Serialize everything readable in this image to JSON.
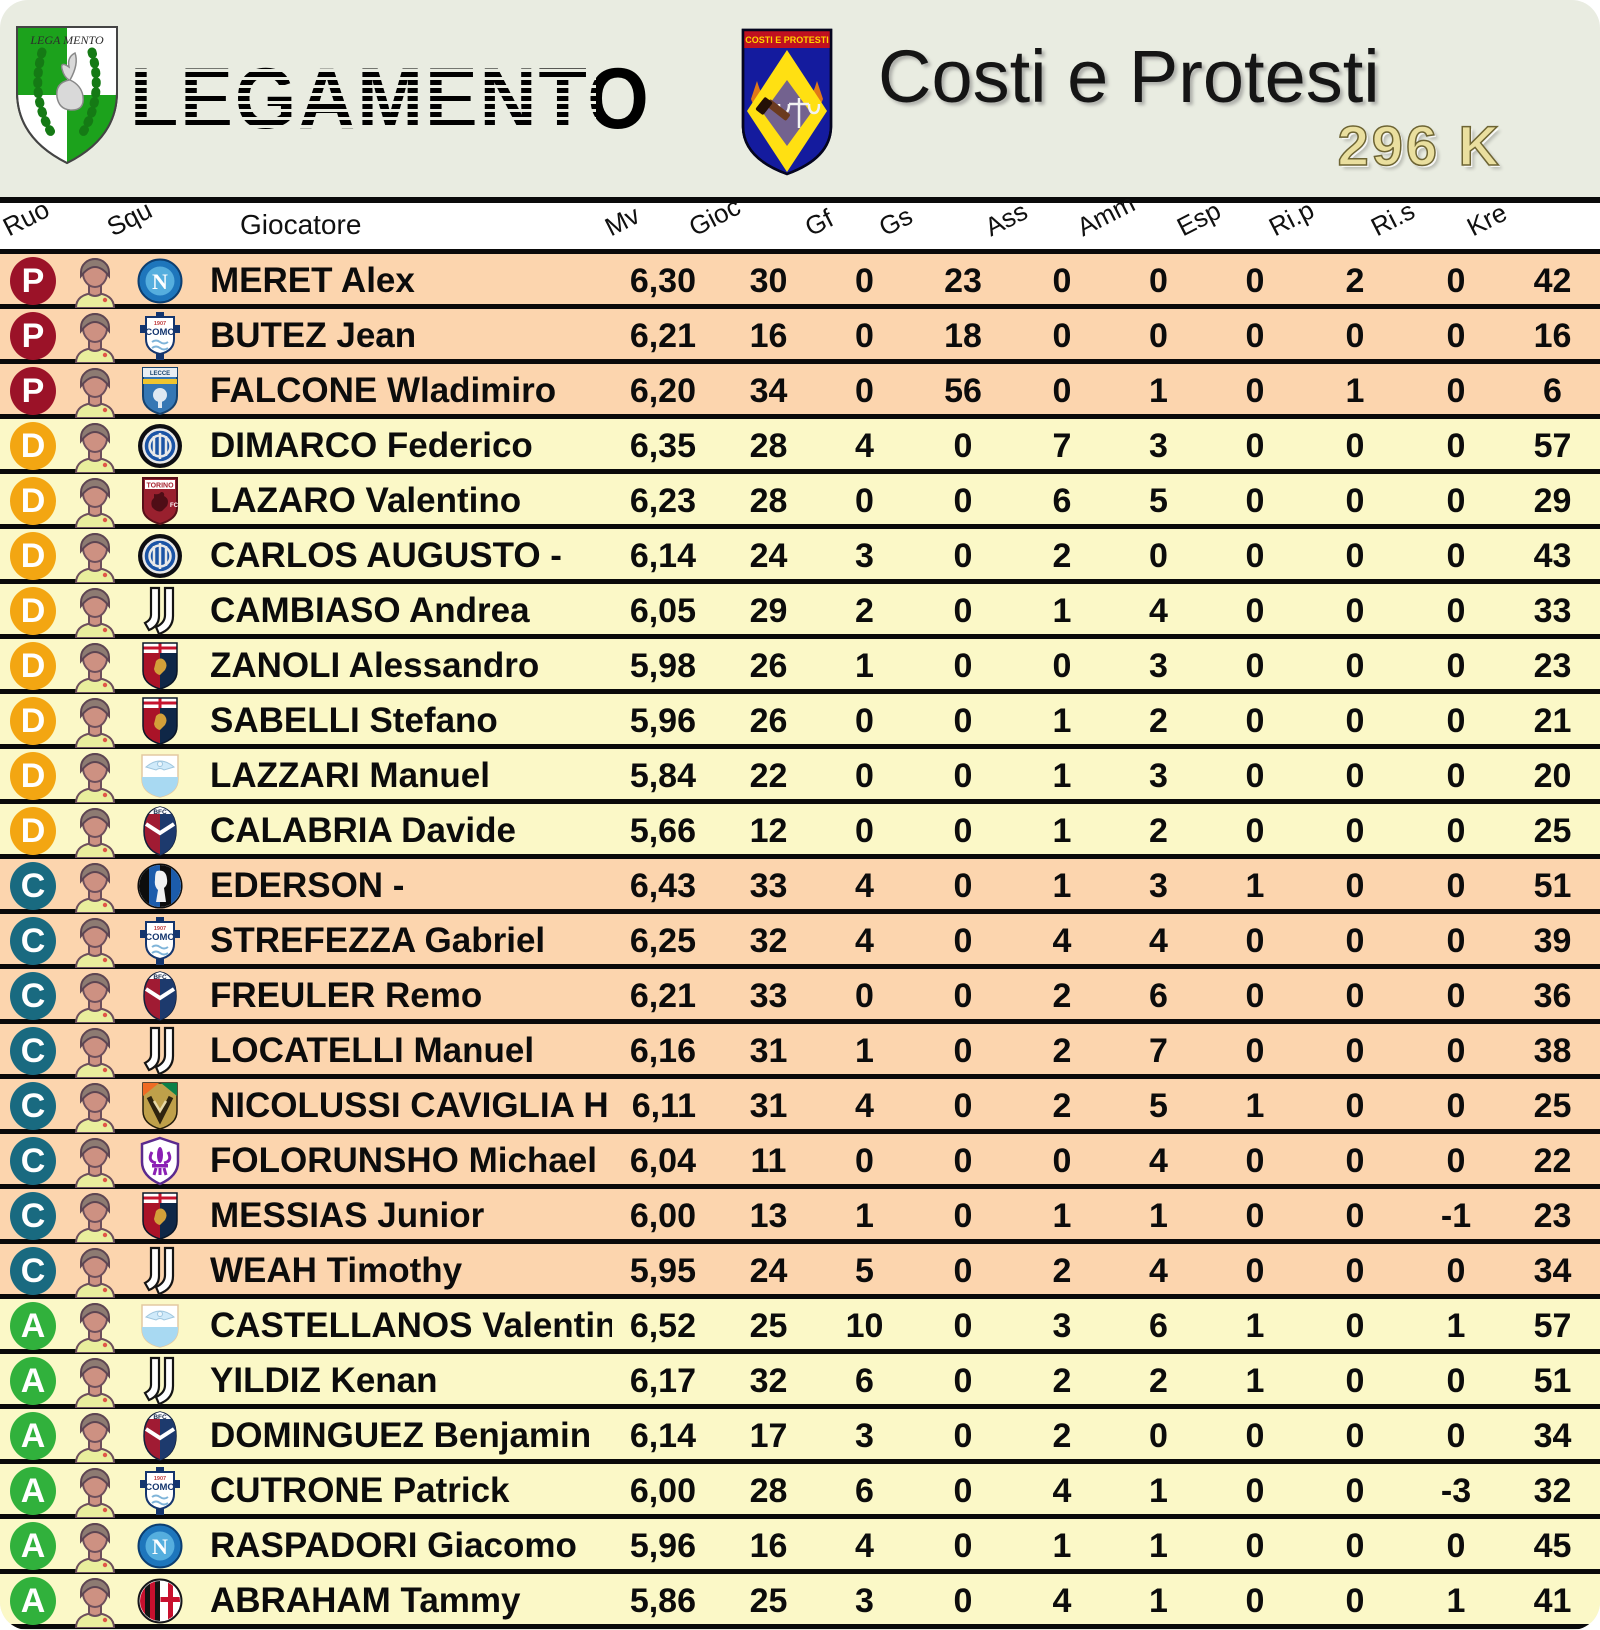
{
  "header": {
    "league_name": "LEGAMENTO",
    "league_logo_text": "LEGA MENTO",
    "team_name": "Costi e Protesti",
    "team_crest_text": "COSTI E PROTESTI",
    "credits": "296 K"
  },
  "role_colors": {
    "P": "#9b1228",
    "D": "#f3a612",
    "C": "#196a80",
    "A": "#31b13c"
  },
  "row_colors": {
    "P": "#fcd5ae",
    "D": "#fbf8c7",
    "C": "#fcd5ae",
    "A": "#fbf8c7"
  },
  "table": {
    "columns": [
      {
        "key": "ruo",
        "label": "Ruo"
      },
      {
        "key": "squ",
        "label": "Squ"
      },
      {
        "key": "giocatore",
        "label": "Giocatore"
      },
      {
        "key": "mv",
        "label": "Mv"
      },
      {
        "key": "gioc",
        "label": "Gioc"
      },
      {
        "key": "gf",
        "label": "Gf"
      },
      {
        "key": "gs",
        "label": "Gs"
      },
      {
        "key": "ass",
        "label": "Ass"
      },
      {
        "key": "amm",
        "label": "Amm"
      },
      {
        "key": "esp",
        "label": "Esp"
      },
      {
        "key": "rip",
        "label": "Ri.p"
      },
      {
        "key": "ris",
        "label": "Ri.s"
      },
      {
        "key": "kre",
        "label": "Kre"
      }
    ],
    "rows": [
      {
        "role": "P",
        "club": "napoli",
        "name": "MERET Alex",
        "mv": "6,30",
        "gioc": 30,
        "gf": 0,
        "gs": 23,
        "ass": 0,
        "amm": 0,
        "esp": 0,
        "rip": 2,
        "ris": 0,
        "kre": 42
      },
      {
        "role": "P",
        "club": "como",
        "name": "BUTEZ Jean",
        "mv": "6,21",
        "gioc": 16,
        "gf": 0,
        "gs": 18,
        "ass": 0,
        "amm": 0,
        "esp": 0,
        "rip": 0,
        "ris": 0,
        "kre": 16
      },
      {
        "role": "P",
        "club": "lecce",
        "name": "FALCONE Wladimiro",
        "mv": "6,20",
        "gioc": 34,
        "gf": 0,
        "gs": 56,
        "ass": 0,
        "amm": 1,
        "esp": 0,
        "rip": 1,
        "ris": 0,
        "kre": 6
      },
      {
        "role": "D",
        "club": "inter",
        "name": "DIMARCO Federico",
        "mv": "6,35",
        "gioc": 28,
        "gf": 4,
        "gs": 0,
        "ass": 7,
        "amm": 3,
        "esp": 0,
        "rip": 0,
        "ris": 0,
        "kre": 57
      },
      {
        "role": "D",
        "club": "torino",
        "name": "LAZARO Valentino",
        "mv": "6,23",
        "gioc": 28,
        "gf": 0,
        "gs": 0,
        "ass": 6,
        "amm": 5,
        "esp": 0,
        "rip": 0,
        "ris": 0,
        "kre": 29
      },
      {
        "role": "D",
        "club": "inter",
        "name": "CARLOS AUGUSTO -",
        "mv": "6,14",
        "gioc": 24,
        "gf": 3,
        "gs": 0,
        "ass": 2,
        "amm": 0,
        "esp": 0,
        "rip": 0,
        "ris": 0,
        "kre": 43
      },
      {
        "role": "D",
        "club": "juventus",
        "name": "CAMBIASO Andrea",
        "mv": "6,05",
        "gioc": 29,
        "gf": 2,
        "gs": 0,
        "ass": 1,
        "amm": 4,
        "esp": 0,
        "rip": 0,
        "ris": 0,
        "kre": 33
      },
      {
        "role": "D",
        "club": "genoa",
        "name": "ZANOLI Alessandro",
        "mv": "5,98",
        "gioc": 26,
        "gf": 1,
        "gs": 0,
        "ass": 0,
        "amm": 3,
        "esp": 0,
        "rip": 0,
        "ris": 0,
        "kre": 23
      },
      {
        "role": "D",
        "club": "genoa",
        "name": "SABELLI Stefano",
        "mv": "5,96",
        "gioc": 26,
        "gf": 0,
        "gs": 0,
        "ass": 1,
        "amm": 2,
        "esp": 0,
        "rip": 0,
        "ris": 0,
        "kre": 21
      },
      {
        "role": "D",
        "club": "lazio",
        "name": "LAZZARI Manuel",
        "mv": "5,84",
        "gioc": 22,
        "gf": 0,
        "gs": 0,
        "ass": 1,
        "amm": 3,
        "esp": 0,
        "rip": 0,
        "ris": 0,
        "kre": 20
      },
      {
        "role": "D",
        "club": "bologna",
        "name": "CALABRIA Davide",
        "mv": "5,66",
        "gioc": 12,
        "gf": 0,
        "gs": 0,
        "ass": 1,
        "amm": 2,
        "esp": 0,
        "rip": 0,
        "ris": 0,
        "kre": 25
      },
      {
        "role": "C",
        "club": "atalanta",
        "name": "EDERSON -",
        "mv": "6,43",
        "gioc": 33,
        "gf": 4,
        "gs": 0,
        "ass": 1,
        "amm": 3,
        "esp": 1,
        "rip": 0,
        "ris": 0,
        "kre": 51
      },
      {
        "role": "C",
        "club": "como",
        "name": "STREFEZZA Gabriel",
        "mv": "6,25",
        "gioc": 32,
        "gf": 4,
        "gs": 0,
        "ass": 4,
        "amm": 4,
        "esp": 0,
        "rip": 0,
        "ris": 0,
        "kre": 39
      },
      {
        "role": "C",
        "club": "bologna",
        "name": "FREULER Remo",
        "mv": "6,21",
        "gioc": 33,
        "gf": 0,
        "gs": 0,
        "ass": 2,
        "amm": 6,
        "esp": 0,
        "rip": 0,
        "ris": 0,
        "kre": 36
      },
      {
        "role": "C",
        "club": "juventus",
        "name": "LOCATELLI Manuel",
        "mv": "6,16",
        "gioc": 31,
        "gf": 1,
        "gs": 0,
        "ass": 2,
        "amm": 7,
        "esp": 0,
        "rip": 0,
        "ris": 0,
        "kre": 38
      },
      {
        "role": "C",
        "club": "venezia",
        "name": "NICOLUSSI CAVIGLIA H",
        "mv": "6,11",
        "gioc": 31,
        "gf": 4,
        "gs": 0,
        "ass": 2,
        "amm": 5,
        "esp": 1,
        "rip": 0,
        "ris": 0,
        "kre": 25
      },
      {
        "role": "C",
        "club": "fiorentina",
        "name": "FOLORUNSHO Michael",
        "mv": "6,04",
        "gioc": 11,
        "gf": 0,
        "gs": 0,
        "ass": 0,
        "amm": 4,
        "esp": 0,
        "rip": 0,
        "ris": 0,
        "kre": 22
      },
      {
        "role": "C",
        "club": "genoa",
        "name": "MESSIAS Junior",
        "mv": "6,00",
        "gioc": 13,
        "gf": 1,
        "gs": 0,
        "ass": 1,
        "amm": 1,
        "esp": 0,
        "rip": 0,
        "ris": -1,
        "kre": 23
      },
      {
        "role": "C",
        "club": "juventus",
        "name": "WEAH Timothy",
        "mv": "5,95",
        "gioc": 24,
        "gf": 5,
        "gs": 0,
        "ass": 2,
        "amm": 4,
        "esp": 0,
        "rip": 0,
        "ris": 0,
        "kre": 34
      },
      {
        "role": "A",
        "club": "lazio",
        "name": "CASTELLANOS Valentin",
        "mv": "6,52",
        "gioc": 25,
        "gf": 10,
        "gs": 0,
        "ass": 3,
        "amm": 6,
        "esp": 1,
        "rip": 0,
        "ris": 1,
        "kre": 57
      },
      {
        "role": "A",
        "club": "juventus",
        "name": "YILDIZ Kenan",
        "mv": "6,17",
        "gioc": 32,
        "gf": 6,
        "gs": 0,
        "ass": 2,
        "amm": 2,
        "esp": 1,
        "rip": 0,
        "ris": 0,
        "kre": 51
      },
      {
        "role": "A",
        "club": "bologna",
        "name": "DOMINGUEZ Benjamin",
        "mv": "6,14",
        "gioc": 17,
        "gf": 3,
        "gs": 0,
        "ass": 2,
        "amm": 0,
        "esp": 0,
        "rip": 0,
        "ris": 0,
        "kre": 34
      },
      {
        "role": "A",
        "club": "como",
        "name": "CUTRONE Patrick",
        "mv": "6,00",
        "gioc": 28,
        "gf": 6,
        "gs": 0,
        "ass": 4,
        "amm": 1,
        "esp": 0,
        "rip": 0,
        "ris": -3,
        "kre": 32
      },
      {
        "role": "A",
        "club": "napoli",
        "name": "RASPADORI Giacomo",
        "mv": "5,96",
        "gioc": 16,
        "gf": 4,
        "gs": 0,
        "ass": 1,
        "amm": 1,
        "esp": 0,
        "rip": 0,
        "ris": 0,
        "kre": 45
      },
      {
        "role": "A",
        "club": "milan",
        "name": "ABRAHAM Tammy",
        "mv": "5,86",
        "gioc": 25,
        "gf": 3,
        "gs": 0,
        "ass": 4,
        "amm": 1,
        "esp": 0,
        "rip": 0,
        "ris": 1,
        "kre": 41
      }
    ]
  }
}
